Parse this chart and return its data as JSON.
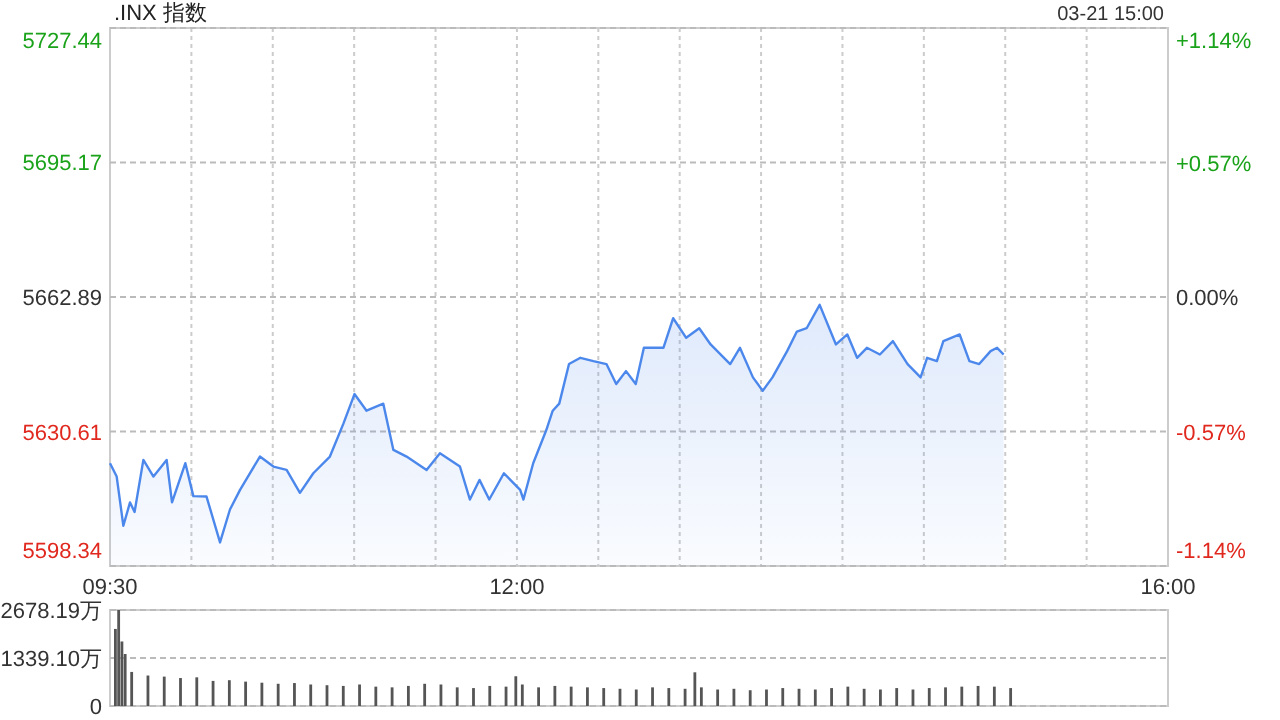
{
  "chart_data": [
    {
      "type": "area",
      "title": ".INX 指数",
      "annotations": [
        "03-21 15:00"
      ],
      "x": [
        9.5,
        9.541,
        9.582,
        9.623,
        9.651,
        9.705,
        9.767,
        9.848,
        9.881,
        9.963,
        10.012,
        10.093,
        10.176,
        10.237,
        10.299,
        10.421,
        10.504,
        10.585,
        10.667,
        10.749,
        10.851,
        10.934,
        11.002,
        11.076,
        11.179,
        11.241,
        11.322,
        11.445,
        11.527,
        11.65,
        11.711,
        11.77,
        11.83,
        11.92,
        12.02,
        12.04,
        12.1,
        12.18,
        12.22,
        12.26,
        12.32,
        12.39,
        12.47,
        12.55,
        12.61,
        12.67,
        12.73,
        12.78,
        12.9,
        12.96,
        13.04,
        13.12,
        13.19,
        13.31,
        13.37,
        13.45,
        13.51,
        13.57,
        13.66,
        13.72,
        13.78,
        13.86,
        13.96,
        14.03,
        14.09,
        14.15,
        14.23,
        14.31,
        14.4,
        14.48,
        14.52,
        14.58,
        14.62,
        14.72,
        14.78,
        14.84,
        14.91,
        14.95,
        14.99
      ],
      "series": [
        {
          "color": "#4c88ec",
          "values": [
            5623.0,
            5619.8,
            5608.0,
            5613.6,
            5611.3,
            5623.8,
            5619.8,
            5623.8,
            5613.6,
            5623.0,
            5615.1,
            5615.0,
            5604.0,
            5611.9,
            5616.6,
            5624.6,
            5622.2,
            5621.4,
            5615.9,
            5620.6,
            5624.6,
            5632.5,
            5639.6,
            5635.6,
            5637.3,
            5626.2,
            5624.6,
            5621.4,
            5625.4,
            5622.2,
            5614.3,
            5619.0,
            5614.3,
            5620.6,
            5616.6,
            5614.3,
            5623.0,
            5630.9,
            5635.6,
            5637.3,
            5646.8,
            5648.3,
            5647.5,
            5646.8,
            5642.0,
            5645.1,
            5642.0,
            5650.7,
            5650.7,
            5657.8,
            5653.1,
            5655.4,
            5651.5,
            5646.8,
            5650.7,
            5643.6,
            5640.4,
            5643.6,
            5649.9,
            5654.6,
            5655.4,
            5661.0,
            5651.5,
            5653.9,
            5648.3,
            5650.7,
            5649.1,
            5652.3,
            5646.8,
            5643.6,
            5648.3,
            5647.5,
            5652.3,
            5653.9,
            5647.5,
            5646.8,
            5649.9,
            5650.7,
            5649.1
          ]
        }
      ],
      "xlim": [
        9.5,
        16
      ],
      "xticks": [
        {
          "value": 9.5,
          "label": "09:30"
        },
        {
          "value": 10,
          "label": null
        },
        {
          "value": 10.5,
          "label": null
        },
        {
          "value": 11,
          "label": null
        },
        {
          "value": 11.5,
          "label": null
        },
        {
          "value": 12,
          "label": "12:00"
        },
        {
          "value": 12.5,
          "label": null
        },
        {
          "value": 13,
          "label": null
        },
        {
          "value": 13.5,
          "label": null
        },
        {
          "value": 14,
          "label": null
        },
        {
          "value": 14.5,
          "label": null
        },
        {
          "value": 15,
          "label": null
        },
        {
          "value": 15.5,
          "label": null
        },
        {
          "value": 16,
          "label": "16:00"
        }
      ],
      "ylim": [
        5598.34,
        5727.44
      ],
      "yticks": [
        5598.34,
        5630.61,
        5662.89,
        5695.17,
        5727.44
      ],
      "y2lim": [
        -1.14,
        1.14
      ],
      "y2ticks": [
        {
          "value": -1.14,
          "label": "-1.14%"
        },
        {
          "value": -0.57,
          "label": "-0.57%"
        },
        {
          "value": 0,
          "label": "0.00%"
        },
        {
          "value": 0.57,
          "label": "+0.57%"
        },
        {
          "value": 1.14,
          "label": "+1.14%"
        }
      ],
      "grid": true
    },
    {
      "type": "bar",
      "x": [
        9.5,
        9.52,
        9.54,
        9.56,
        9.6,
        9.7,
        9.8,
        9.9,
        10.0,
        10.1,
        10.2,
        10.3,
        10.4,
        10.5,
        10.6,
        10.7,
        10.8,
        10.9,
        11.0,
        11.1,
        11.2,
        11.3,
        11.4,
        11.5,
        11.6,
        11.7,
        11.8,
        11.9,
        11.96,
        12.0,
        12.1,
        12.2,
        12.3,
        12.4,
        12.5,
        12.6,
        12.7,
        12.8,
        12.9,
        13.0,
        13.06,
        13.1,
        13.2,
        13.3,
        13.4,
        13.5,
        13.6,
        13.7,
        13.8,
        13.9,
        14.0,
        14.1,
        14.2,
        14.3,
        14.4,
        14.5,
        14.6,
        14.7,
        14.8,
        14.9,
        15.0
      ],
      "series": [
        {
          "color": "#555555",
          "values": [
            2150,
            2678,
            1800,
            1450,
            950,
            850,
            820,
            780,
            800,
            700,
            720,
            680,
            650,
            620,
            640,
            600,
            580,
            560,
            600,
            540,
            520,
            560,
            620,
            600,
            520,
            500,
            560,
            540,
            830,
            600,
            520,
            560,
            540,
            520,
            500,
            480,
            460,
            520,
            500,
            480,
            940,
            520,
            460,
            480,
            440,
            460,
            500,
            480,
            460,
            500,
            540,
            480,
            460,
            500,
            460,
            500,
            520,
            540,
            560,
            540,
            500
          ]
        }
      ],
      "xlim": [
        9.5,
        16
      ],
      "ylim": [
        0,
        2678.19
      ],
      "yticks": [
        0,
        {
          "value": 1339.1,
          "label": "1339.10万"
        },
        {
          "value": 2678.19,
          "label": "2678.19万"
        }
      ],
      "grid": "y",
      "tick_labels": "y"
    }
  ]
}
